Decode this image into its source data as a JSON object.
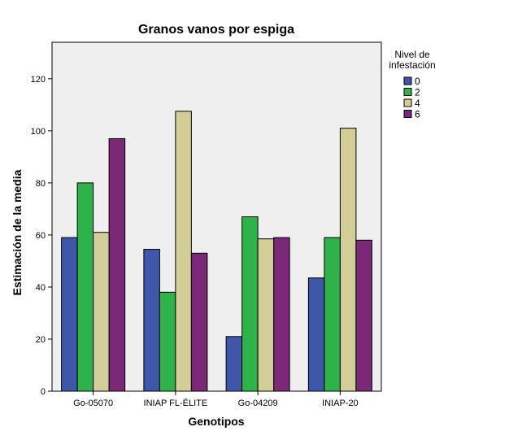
{
  "chart_data": {
    "type": "bar",
    "title": "Granos vanos por espiga",
    "xlabel": "Genotipos",
    "ylabel": "Estimación de la media",
    "categories": [
      "Go-05070",
      "INIAP FL-ÉLITE",
      "Go-04209",
      "INIAP-20"
    ],
    "series": [
      {
        "name": "0",
        "color": "#3F57A8",
        "values": [
          59,
          54.5,
          21,
          43.5
        ]
      },
      {
        "name": "2",
        "color": "#2DB34A",
        "values": [
          80,
          38,
          67,
          59
        ]
      },
      {
        "name": "4",
        "color": "#D3CE97",
        "values": [
          61,
          107.5,
          58.5,
          101
        ]
      },
      {
        "name": "6",
        "color": "#7B2878",
        "values": [
          97,
          53,
          59,
          58
        ]
      }
    ],
    "ylim": [
      0,
      134
    ],
    "yticks": [
      0,
      20,
      40,
      60,
      80,
      100,
      120
    ],
    "legend": {
      "title_line1": "Nivel de",
      "title_line2": "infestación",
      "placement": "right"
    },
    "plot_background": "#EFEFEF",
    "grid": false
  }
}
